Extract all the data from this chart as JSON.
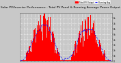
{
  "title": "Solar PV/Inverter Performance - Total PV Panel & Running Average Power Output",
  "title_fontsize": 3.2,
  "bg_color": "#c8c8c8",
  "plot_bg_color": "#c8c8c8",
  "bar_color": "#ff0000",
  "avg_line_color": "#0000ff",
  "grid_color": "#ffffff",
  "ylim": [
    0,
    9000
  ],
  "yticks": [
    0,
    1000,
    2000,
    3000,
    4000,
    5000,
    6000,
    7000,
    8000
  ],
  "ytick_labels": [
    "0",
    "1k",
    "2k",
    "3k",
    "4k",
    "5k",
    "6k",
    "7k",
    "8k"
  ],
  "n_bars": 260,
  "legend_labels": [
    "Total PV Output",
    "Running Avg"
  ],
  "legend_colors": [
    "#ff0000",
    "#0000ff"
  ]
}
